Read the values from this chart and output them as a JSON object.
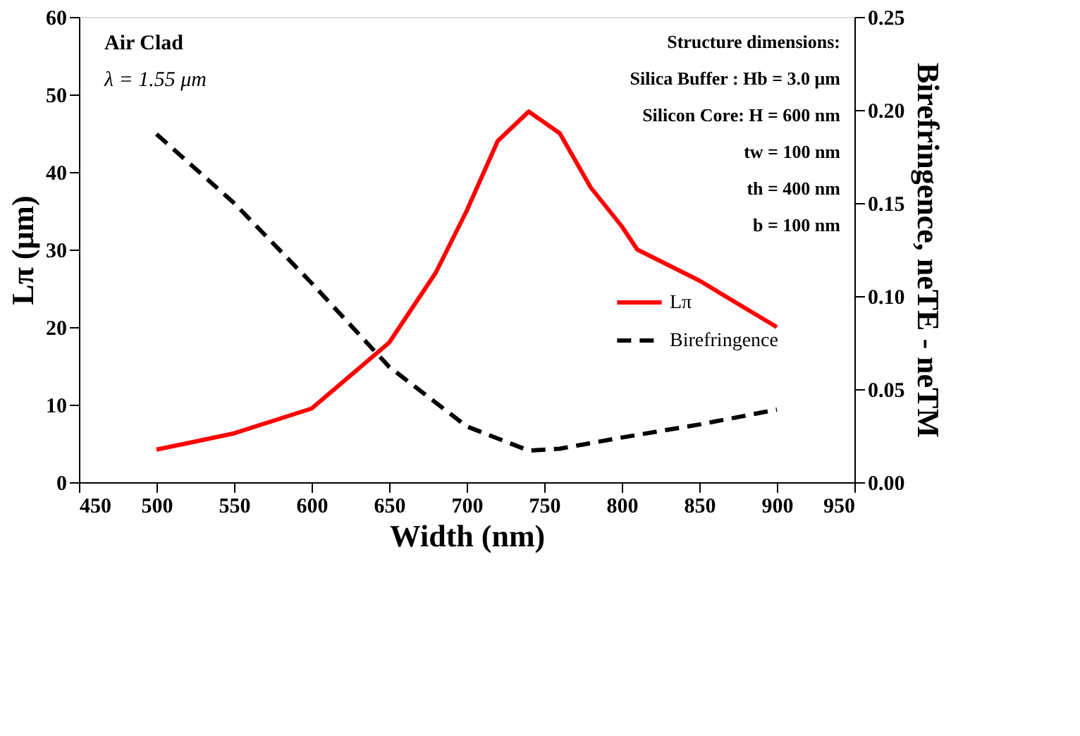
{
  "chart_data": {
    "type": "line",
    "xlabel": "Width (nm)",
    "ylabel": "Lπ (μm)",
    "y2label": "Birefringence, neTE - neTM",
    "xlim": [
      450,
      950
    ],
    "xticks": [
      450,
      500,
      550,
      600,
      650,
      700,
      750,
      800,
      850,
      900,
      950
    ],
    "ylim": [
      0,
      60
    ],
    "yticks": [
      0,
      10,
      20,
      30,
      40,
      50,
      60
    ],
    "y2lim": [
      0,
      0.25
    ],
    "y2ticks": [
      {
        "value": 0,
        "label": "0.00"
      },
      0.05,
      {
        "value": 0.1,
        "label": "0.10"
      },
      0.15,
      {
        "value": 0.2,
        "label": "0.20"
      },
      0.25
    ],
    "x": [
      500,
      550,
      600,
      650,
      680,
      700,
      720,
      740,
      760,
      780,
      800,
      810,
      850,
      900
    ],
    "series": [
      {
        "name": "Lπ",
        "color": "#ff0000",
        "line_style": "solid",
        "values": [
          4.2,
          6.3,
          9.5,
          18,
          27,
          35,
          44,
          47.8,
          45,
          38,
          33,
          30,
          26,
          20
        ]
      },
      {
        "name": "Birefringence",
        "color": "#000000",
        "line_style": "dashed",
        "axis": "y2",
        "x": [
          500,
          550,
          600,
          650,
          700,
          740,
          760,
          800,
          850,
          900
        ],
        "values": [
          0.187,
          0.15,
          0.107,
          0.062,
          0.03,
          0.017,
          0.018,
          0.024,
          0.031,
          0.039
        ]
      }
    ],
    "annotations": [
      "Air Clad",
      "λ = 1.55 μm",
      "Structure dimensions:",
      "Silica Buffer : Hb = 3.0 μm",
      "Silicon Core: H = 600 nm",
      "tw = 100 nm",
      "th = 400 nm",
      "b = 100 nm"
    ],
    "legend": "right",
    "grid": false
  }
}
